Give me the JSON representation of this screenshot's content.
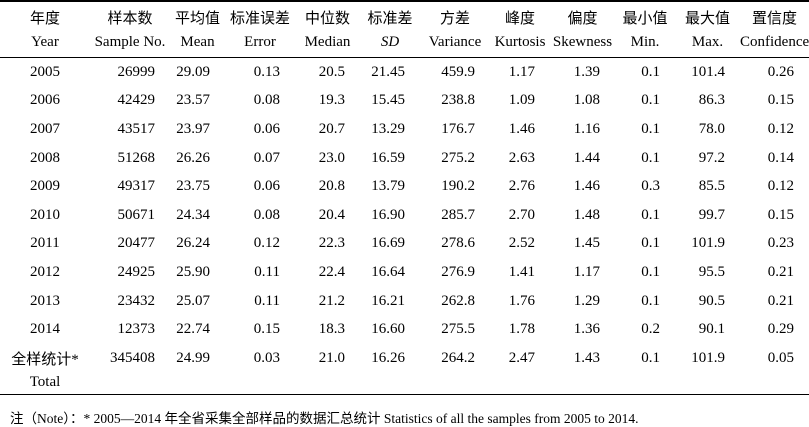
{
  "table": {
    "columns": [
      {
        "zh": "年度",
        "en": "Year",
        "italic": false
      },
      {
        "zh": "样本数",
        "en": "Sample No.",
        "italic": false
      },
      {
        "zh": "平均值",
        "en": "Mean",
        "italic": false
      },
      {
        "zh": "标准误差",
        "en": "Error",
        "italic": false
      },
      {
        "zh": "中位数",
        "en": "Median",
        "italic": false
      },
      {
        "zh": "标准差",
        "en": "SD",
        "italic": true
      },
      {
        "zh": "方差",
        "en": "Variance",
        "italic": false
      },
      {
        "zh": "峰度",
        "en": "Kurtosis",
        "italic": false
      },
      {
        "zh": "偏度",
        "en": "Skewness",
        "italic": false
      },
      {
        "zh": "最小值",
        "en": "Min.",
        "italic": false
      },
      {
        "zh": "最大值",
        "en": "Max.",
        "italic": false
      },
      {
        "zh": "置信度",
        "en": "Confidence",
        "italic": false
      }
    ],
    "rows": [
      [
        "2005",
        "26999",
        "29.09",
        "0.13",
        "20.5",
        "21.45",
        "459.9",
        "1.17",
        "1.39",
        "0.1",
        "101.4",
        "0.26"
      ],
      [
        "2006",
        "42429",
        "23.57",
        "0.08",
        "19.3",
        "15.45",
        "238.8",
        "1.09",
        "1.08",
        "0.1",
        "86.3",
        "0.15"
      ],
      [
        "2007",
        "43517",
        "23.97",
        "0.06",
        "20.7",
        "13.29",
        "176.7",
        "1.46",
        "1.16",
        "0.1",
        "78.0",
        "0.12"
      ],
      [
        "2008",
        "51268",
        "26.26",
        "0.07",
        "23.0",
        "16.59",
        "275.2",
        "2.63",
        "1.44",
        "0.1",
        "97.2",
        "0.14"
      ],
      [
        "2009",
        "49317",
        "23.75",
        "0.06",
        "20.8",
        "13.79",
        "190.2",
        "2.76",
        "1.46",
        "0.3",
        "85.5",
        "0.12"
      ],
      [
        "2010",
        "50671",
        "24.34",
        "0.08",
        "20.4",
        "16.90",
        "285.7",
        "2.70",
        "1.48",
        "0.1",
        "99.7",
        "0.15"
      ],
      [
        "2011",
        "20477",
        "26.24",
        "0.12",
        "22.3",
        "16.69",
        "278.6",
        "2.52",
        "1.45",
        "0.1",
        "101.9",
        "0.23"
      ],
      [
        "2012",
        "24925",
        "25.90",
        "0.11",
        "22.4",
        "16.64",
        "276.9",
        "1.41",
        "1.17",
        "0.1",
        "95.5",
        "0.21"
      ],
      [
        "2013",
        "23432",
        "25.07",
        "0.11",
        "21.2",
        "16.21",
        "262.8",
        "1.76",
        "1.29",
        "0.1",
        "90.5",
        "0.21"
      ],
      [
        "2014",
        "12373",
        "22.74",
        "0.15",
        "18.3",
        "16.60",
        "275.5",
        "1.78",
        "1.36",
        "0.2",
        "90.1",
        "0.29"
      ]
    ],
    "total_row": {
      "label_zh": "全样统计*",
      "label_en": "Total",
      "values": [
        "345408",
        "24.99",
        "0.03",
        "21.0",
        "16.26",
        "264.2",
        "2.47",
        "1.43",
        "0.1",
        "101.9",
        "0.05"
      ]
    }
  },
  "note": "注（Note）：* 2005—2014 年全省采集全部样品的数据汇总统计 Statistics of all the samples from 2005 to 2014."
}
